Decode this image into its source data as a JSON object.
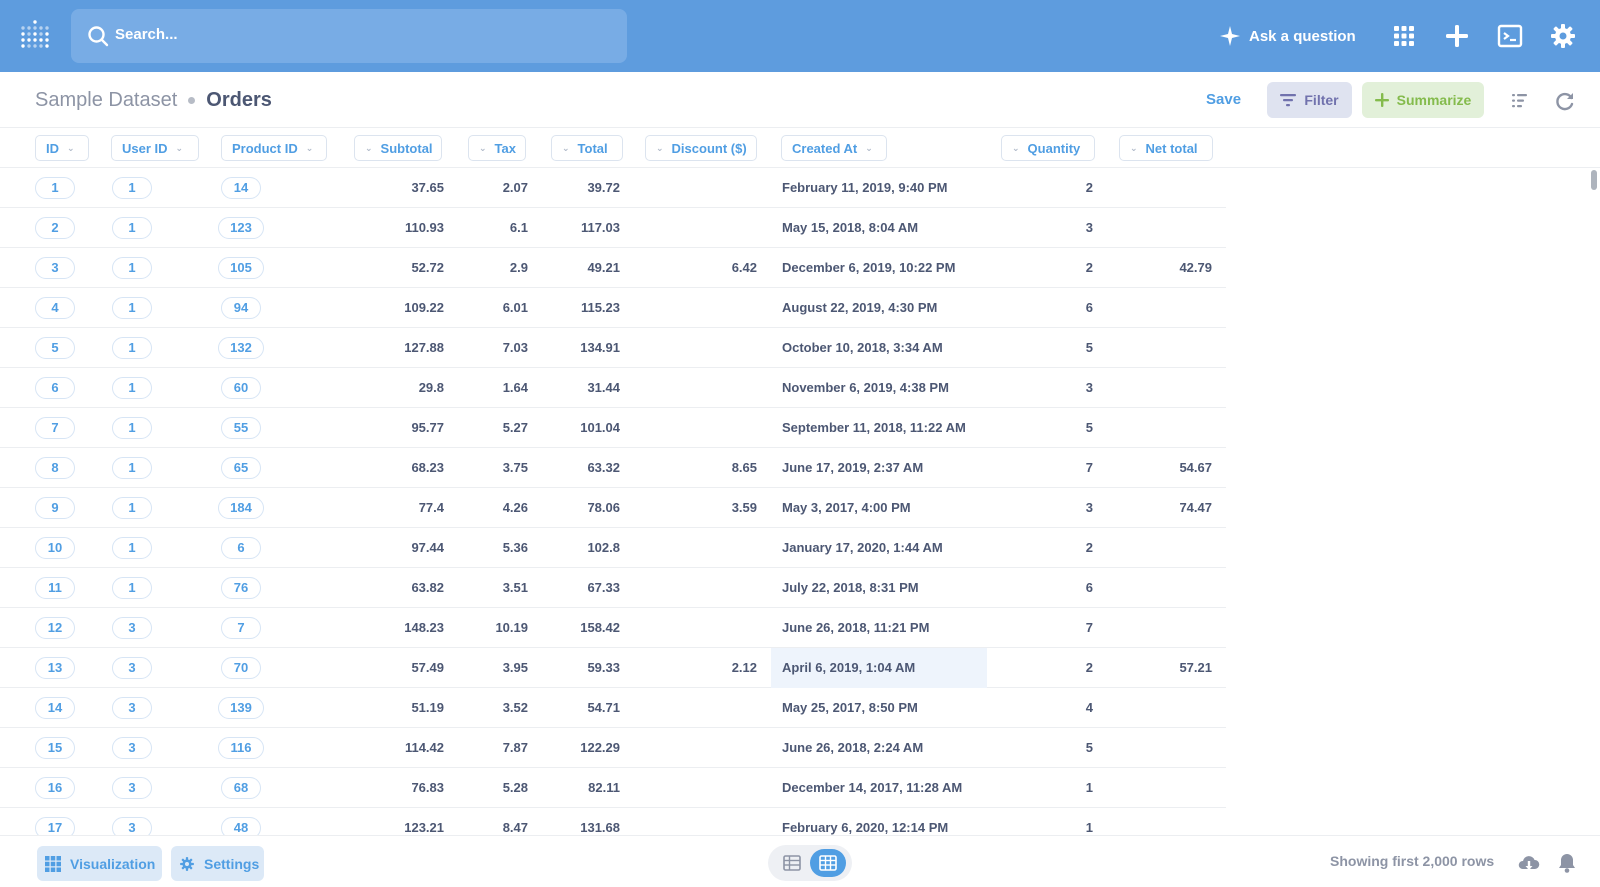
{
  "search": {
    "placeholder": "Search..."
  },
  "nav": {
    "ask_label": "Ask a question"
  },
  "breadcrumb": {
    "dataset": "Sample Dataset",
    "table": "Orders"
  },
  "actions": {
    "save": "Save",
    "filter": "Filter",
    "summarize": "Summarize"
  },
  "columns": [
    "ID",
    "User ID",
    "Product ID",
    "Subtotal",
    "Tax",
    "Total",
    "Discount ($)",
    "Created At",
    "Quantity",
    "Net total"
  ],
  "rows": [
    [
      "1",
      "1",
      "14",
      "37.65",
      "2.07",
      "39.72",
      "",
      "February 11, 2019, 9:40 PM",
      "2",
      ""
    ],
    [
      "2",
      "1",
      "123",
      "110.93",
      "6.1",
      "117.03",
      "",
      "May 15, 2018, 8:04 AM",
      "3",
      ""
    ],
    [
      "3",
      "1",
      "105",
      "52.72",
      "2.9",
      "49.21",
      "6.42",
      "December 6, 2019, 10:22 PM",
      "2",
      "42.79"
    ],
    [
      "4",
      "1",
      "94",
      "109.22",
      "6.01",
      "115.23",
      "",
      "August 22, 2019, 4:30 PM",
      "6",
      ""
    ],
    [
      "5",
      "1",
      "132",
      "127.88",
      "7.03",
      "134.91",
      "",
      "October 10, 2018, 3:34 AM",
      "5",
      ""
    ],
    [
      "6",
      "1",
      "60",
      "29.8",
      "1.64",
      "31.44",
      "",
      "November 6, 2019, 4:38 PM",
      "3",
      ""
    ],
    [
      "7",
      "1",
      "55",
      "95.77",
      "5.27",
      "101.04",
      "",
      "September 11, 2018, 11:22 AM",
      "5",
      ""
    ],
    [
      "8",
      "1",
      "65",
      "68.23",
      "3.75",
      "63.32",
      "8.65",
      "June 17, 2019, 2:37 AM",
      "7",
      "54.67"
    ],
    [
      "9",
      "1",
      "184",
      "77.4",
      "4.26",
      "78.06",
      "3.59",
      "May 3, 2017, 4:00 PM",
      "3",
      "74.47"
    ],
    [
      "10",
      "1",
      "6",
      "97.44",
      "5.36",
      "102.8",
      "",
      "January 17, 2020, 1:44 AM",
      "2",
      ""
    ],
    [
      "11",
      "1",
      "76",
      "63.82",
      "3.51",
      "67.33",
      "",
      "July 22, 2018, 8:31 PM",
      "6",
      ""
    ],
    [
      "12",
      "3",
      "7",
      "148.23",
      "10.19",
      "158.42",
      "",
      "June 26, 2018, 11:21 PM",
      "7",
      ""
    ],
    [
      "13",
      "3",
      "70",
      "57.49",
      "3.95",
      "59.33",
      "2.12",
      "April 6, 2019, 1:04 AM",
      "2",
      "57.21"
    ],
    [
      "14",
      "3",
      "139",
      "51.19",
      "3.52",
      "54.71",
      "",
      "May 25, 2017, 8:50 PM",
      "4",
      ""
    ],
    [
      "15",
      "3",
      "116",
      "114.42",
      "7.87",
      "122.29",
      "",
      "June 26, 2018, 2:24 AM",
      "5",
      ""
    ],
    [
      "16",
      "3",
      "68",
      "76.83",
      "5.28",
      "82.11",
      "",
      "December 14, 2017, 11:28 AM",
      "1",
      ""
    ],
    [
      "17",
      "3",
      "48",
      "123.21",
      "8.47",
      "131.68",
      "",
      "February 6, 2020, 12:14 PM",
      "1",
      ""
    ]
  ],
  "footer": {
    "visualization": "Visualization",
    "settings": "Settings",
    "row_count": "Showing first 2,000 rows"
  },
  "colors": {
    "brand": "#509ee3",
    "nav_bg": "#5e9cde",
    "filter": "#7172ad",
    "summarize": "#84bb4c",
    "text": "#4c5773"
  }
}
